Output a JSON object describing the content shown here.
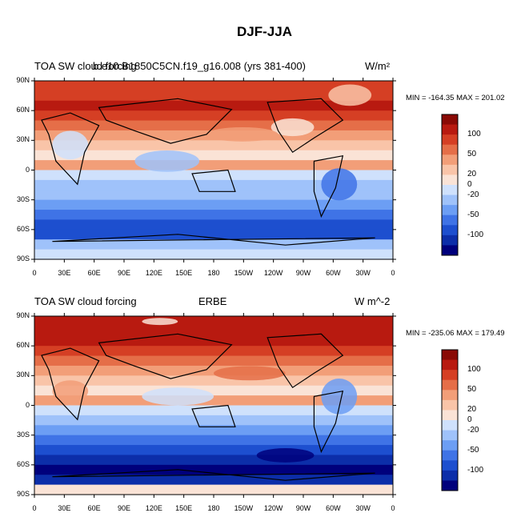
{
  "title": "DJF-JJA",
  "palette": [
    "#00007c",
    "#0c2ea9",
    "#1d4fcf",
    "#3f73e6",
    "#6c9ef4",
    "#9fc2fa",
    "#cfe1fc",
    "#fae3d6",
    "#f9c4a8",
    "#f29e78",
    "#e56e48",
    "#d53f24",
    "#b81a10",
    "#8a0a05"
  ],
  "panels": [
    {
      "left_title": "TOA SW cloud forcing",
      "center_title": "b.e10.B1850C5CN.f19_g16.008 (yrs 381-400)",
      "right_title": "W/m²",
      "stats": "MIN = -164.35  MAX = 201.02",
      "lat_labels": [
        "90N",
        "60N",
        "30N",
        "0",
        "30S",
        "60S",
        "90S"
      ],
      "lon_labels": [
        "0",
        "30E",
        "60E",
        "90E",
        "120E",
        "150E",
        "180",
        "150W",
        "120W",
        "90W",
        "60W",
        "30W",
        "0"
      ],
      "colorbar_labels": [
        "100",
        "50",
        "20",
        "0",
        "-20",
        "-50",
        "-100"
      ]
    },
    {
      "left_title": "TOA SW cloud forcing",
      "center_title": "ERBE",
      "right_title": "W m^-2",
      "stats": "MIN = -235.06  MAX = 179.49",
      "lat_labels": [
        "90N",
        "60N",
        "30N",
        "0",
        "30S",
        "60S",
        "90S"
      ],
      "lon_labels": [
        "0",
        "30E",
        "60E",
        "90E",
        "120E",
        "150E",
        "180",
        "150W",
        "120W",
        "90W",
        "60W",
        "30W",
        "0"
      ],
      "colorbar_labels": [
        "100",
        "50",
        "20",
        "0",
        "-20",
        "-50",
        "-100"
      ]
    }
  ]
}
